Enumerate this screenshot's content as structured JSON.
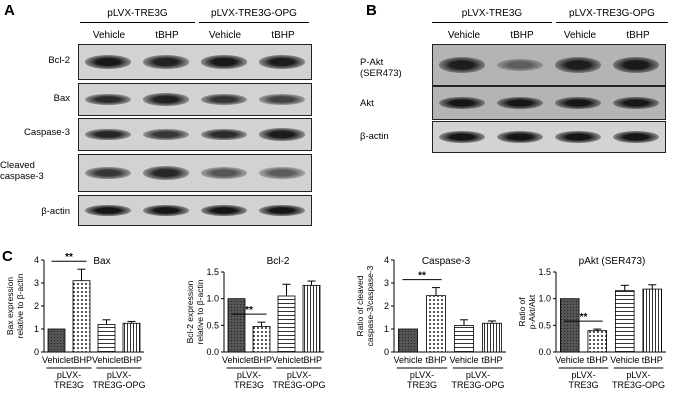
{
  "panels": {
    "a": "A",
    "b": "B",
    "c": "C"
  },
  "blot_a": {
    "groups": [
      "pLVX-TRE3G",
      "pLVX-TRE3G-OPG"
    ],
    "lanes": [
      "Vehicle",
      "tBHP",
      "Vehicle",
      "tBHP"
    ],
    "rows": [
      {
        "label": "Bcl-2",
        "intensity": [
          0.9,
          0.85,
          0.9,
          0.88
        ]
      },
      {
        "label": "Bax",
        "intensity": [
          0.78,
          0.85,
          0.72,
          0.62
        ]
      },
      {
        "label": "Caspase-3",
        "intensity": [
          0.82,
          0.7,
          0.78,
          0.88
        ]
      },
      {
        "label": "Cleaved caspase-3",
        "intensity": [
          0.7,
          0.8,
          0.5,
          0.45
        ]
      },
      {
        "label": "β-actin",
        "intensity": [
          0.92,
          0.92,
          0.92,
          0.92
        ]
      }
    ]
  },
  "blot_b": {
    "groups": [
      "pLVX-TRE3G",
      "pLVX-TRE3G-OPG"
    ],
    "lanes": [
      "Vehicle",
      "tBHP",
      "Vehicle",
      "tBHP"
    ],
    "rows": [
      {
        "label": "P-Akt (SER473)",
        "intensity": [
          0.85,
          0.35,
          0.85,
          0.88
        ]
      },
      {
        "label": "Akt",
        "intensity": [
          0.9,
          0.9,
          0.9,
          0.9
        ]
      },
      {
        "label": "β-actin",
        "intensity": [
          0.92,
          0.92,
          0.92,
          0.92
        ]
      }
    ]
  },
  "chart_data": [
    {
      "type": "bar",
      "title": "Bax",
      "ylabel": "Bax expression relative to β-actin",
      "categories": [
        "Vehicle",
        "tBHP",
        "Vehicle",
        "tBHP"
      ],
      "values": [
        1.0,
        3.1,
        1.2,
        1.25
      ],
      "errors": [
        0,
        0.5,
        0.2,
        0.08
      ],
      "ylim": [
        0,
        4
      ],
      "yticks": [
        "0",
        "1",
        "2",
        "3",
        "4"
      ],
      "groups": [
        "pLVX-TRE3G",
        "pLVX-TRE3G-OPG"
      ],
      "significance": "**"
    },
    {
      "type": "bar",
      "title": "Bcl-2",
      "ylabel": "Bcl-2 expression relative to β-actin",
      "categories": [
        "Vehicle",
        "tBHP",
        "Vehicle",
        "tBHP"
      ],
      "values": [
        1.0,
        0.48,
        1.05,
        1.25
      ],
      "errors": [
        0,
        0.08,
        0.22,
        0.08
      ],
      "ylim": [
        0,
        1.5
      ],
      "yticks": [
        "0.0",
        "0.5",
        "1.0",
        "1.5"
      ],
      "groups": [
        "pLVX-TRE3G",
        "pLVX-TRE3G-OPG"
      ],
      "significance": "**"
    },
    {
      "type": "bar",
      "title": "Caspase-3",
      "ylabel": "Ratio of cleaved caspase-3/caspase-3",
      "categories": [
        "Vehicle",
        "tBHP",
        "Vehicle",
        "tBHP"
      ],
      "values": [
        1.0,
        2.45,
        1.15,
        1.25
      ],
      "errors": [
        0,
        0.35,
        0.25,
        0.1
      ],
      "ylim": [
        0,
        4
      ],
      "yticks": [
        "0",
        "1",
        "2",
        "3",
        "4"
      ],
      "groups": [
        "pLVX-TRE3G",
        "pLVX-TRE3G-OPG"
      ],
      "significance": "**"
    },
    {
      "type": "bar",
      "title": "pAkt (SER473)",
      "ylabel": "Ratio of p-Akt/Akt",
      "categories": [
        "Vehicle",
        "tBHP",
        "Vehicle",
        "tBHP"
      ],
      "values": [
        1.0,
        0.4,
        1.15,
        1.18
      ],
      "errors": [
        0,
        0.03,
        0.1,
        0.08
      ],
      "ylim": [
        0,
        1.5
      ],
      "yticks": [
        "0.0",
        "0.5",
        "1.0",
        "1.5"
      ],
      "groups": [
        "pLVX-TRE3G",
        "pLVX-TRE3G-OPG"
      ],
      "significance": "**"
    }
  ]
}
